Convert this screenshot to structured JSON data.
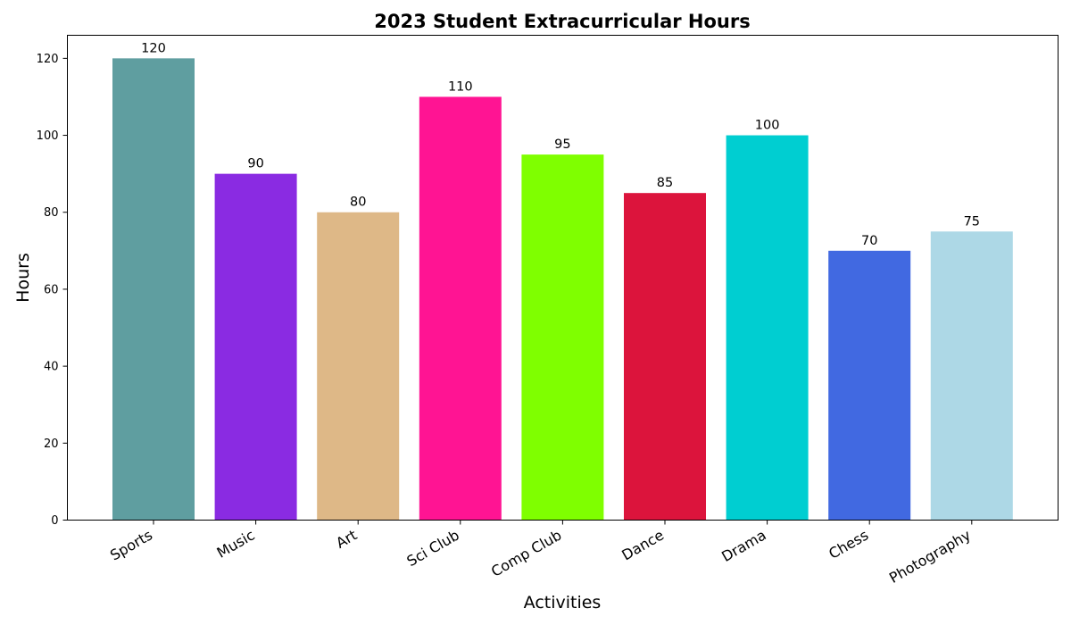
{
  "chart_data": {
    "type": "bar",
    "title": "2023 Student Extracurricular Hours",
    "xlabel": "Activities",
    "ylabel": "Hours",
    "categories": [
      "Sports",
      "Music",
      "Art",
      "Sci Club",
      "Comp Club",
      "Dance",
      "Drama",
      "Chess",
      "Photography"
    ],
    "values": [
      120,
      90,
      80,
      110,
      95,
      85,
      100,
      70,
      75
    ],
    "colors": [
      "#5f9ea0",
      "#8a2be2",
      "#deb887",
      "#ff1493",
      "#7fff00",
      "#dc143c",
      "#00ced1",
      "#4169e1",
      "#add8e6"
    ],
    "ylim": [
      0,
      126
    ],
    "yticks": [
      0,
      20,
      40,
      60,
      80,
      100,
      120
    ],
    "grid": false,
    "legend": "none"
  }
}
